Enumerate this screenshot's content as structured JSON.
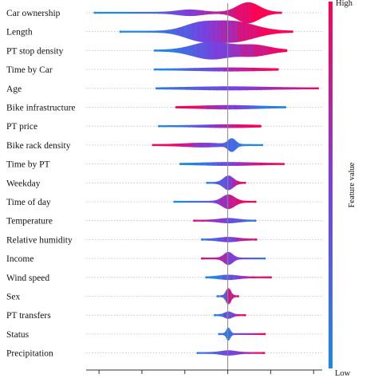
{
  "chart_data": {
    "type": "violin",
    "features": [
      {
        "name": "Car ownership",
        "range": [
          -1.55,
          0.62
        ]
      },
      {
        "name": "Length",
        "range": [
          -1.25,
          0.75
        ]
      },
      {
        "name": "PT stop density",
        "range": [
          -0.85,
          0.68
        ]
      },
      {
        "name": "Time by Car",
        "range": [
          -0.85,
          0.58
        ]
      },
      {
        "name": "Age",
        "range": [
          -0.83,
          1.05
        ]
      },
      {
        "name": "Bike infrastructure",
        "range": [
          -0.6,
          0.67
        ]
      },
      {
        "name": "PT price",
        "range": [
          -0.8,
          0.38
        ]
      },
      {
        "name": "Bike rack density",
        "range": [
          -0.87,
          0.4
        ]
      },
      {
        "name": "Time by PT",
        "range": [
          -0.55,
          0.65
        ]
      },
      {
        "name": "Weekday",
        "range": [
          -0.24,
          0.2
        ]
      },
      {
        "name": "Time of day",
        "range": [
          -0.62,
          0.32
        ]
      },
      {
        "name": "Temperature",
        "range": [
          -0.39,
          0.32
        ]
      },
      {
        "name": "Relative humidity",
        "range": [
          -0.3,
          0.33
        ]
      },
      {
        "name": "Income",
        "range": [
          -0.3,
          0.43
        ]
      },
      {
        "name": "Wind speed",
        "range": [
          -0.25,
          0.5
        ]
      },
      {
        "name": "Sex",
        "range": [
          -0.12,
          0.12
        ]
      },
      {
        "name": "PT transfers",
        "range": [
          -0.15,
          0.2
        ]
      },
      {
        "name": "Status",
        "range": [
          -0.1,
          0.43
        ]
      },
      {
        "name": "Precipitation",
        "range": [
          -0.35,
          0.42
        ]
      }
    ],
    "xlim": [
      -1.65,
      1.1
    ],
    "x_ticks": [
      -1.5,
      -1.0,
      -0.5,
      0.0,
      0.5,
      1.0
    ],
    "x_tick_labels_visible": false,
    "zero_line": true,
    "colorbar": {
      "label": "Feature value",
      "low": "Low",
      "high": "High",
      "low_color": "#1e88e5",
      "high_color": "#ff0052"
    },
    "colors": {
      "low": "#1e88e5",
      "high": "#ff0052"
    }
  }
}
